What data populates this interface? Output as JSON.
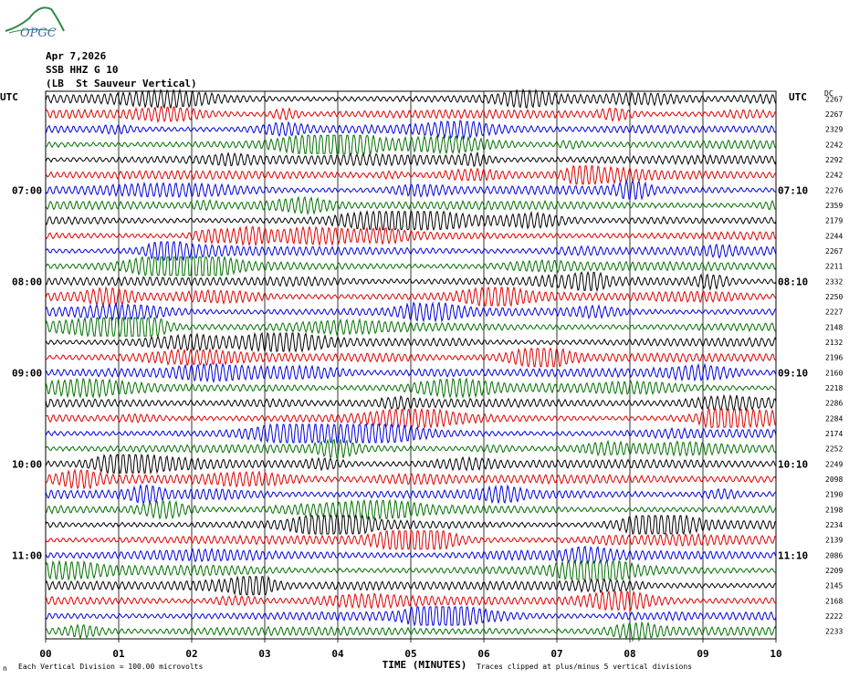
{
  "header": {
    "logo_text": "OPGC",
    "date": "Apr 7,2026",
    "station": "SSB HHZ G 10",
    "site": "(LB  St Sauveur Vertical)"
  },
  "chart_data": {
    "type": "line",
    "title": "SSB HHZ G 10",
    "xlabel": "TIME (MINUTES)",
    "x_ticks": [
      "00",
      "01",
      "02",
      "03",
      "04",
      "05",
      "06",
      "07",
      "08",
      "09",
      "10"
    ],
    "xlim": [
      0,
      10
    ],
    "left_axis_title": "UTC",
    "right_axis_title": "UTC",
    "dc_title": "DC",
    "left_hour_labels": [
      {
        "row": 6,
        "label": "07:00"
      },
      {
        "row": 12,
        "label": "08:00"
      },
      {
        "row": 18,
        "label": "09:00"
      },
      {
        "row": 24,
        "label": "10:00"
      },
      {
        "row": 30,
        "label": "11:00"
      }
    ],
    "right_hour_labels": [
      {
        "row": 6,
        "label": "07:10"
      },
      {
        "row": 12,
        "label": "08:10"
      },
      {
        "row": 18,
        "label": "09:10"
      },
      {
        "row": 24,
        "label": "10:10"
      },
      {
        "row": 30,
        "label": "11:10"
      }
    ],
    "trace_colors": [
      "#000000",
      "#e00000",
      "#0000e0",
      "#007000"
    ],
    "dc_offsets": [
      2267,
      2267,
      2329,
      2242,
      2292,
      2242,
      2276,
      2359,
      2179,
      2244,
      2267,
      2211,
      2332,
      2250,
      2227,
      2148,
      2132,
      2196,
      2160,
      2218,
      2286,
      2284,
      2174,
      2252,
      2249,
      2098,
      2190,
      2198,
      2234,
      2139,
      2086,
      2209,
      2145,
      2168,
      2222,
      2233
    ],
    "footer_left": "Each Vertical Division =  100.00 microvolts",
    "footer_right": "Traces clipped at plus/minus 5 vertical divisions",
    "corner_mark": "n"
  }
}
